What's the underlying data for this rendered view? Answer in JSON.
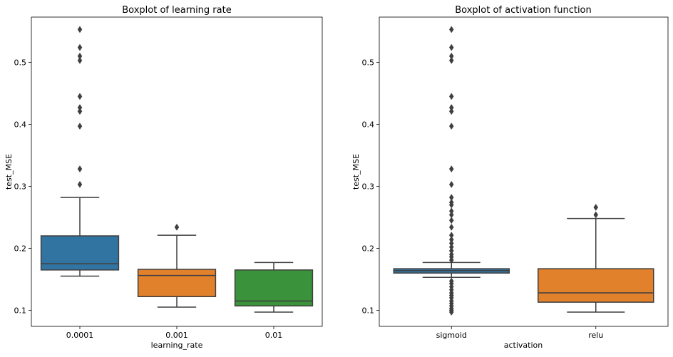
{
  "chart_data": [
    {
      "type": "box",
      "title": "Boxplot of learning rate",
      "xlabel": "learning_rate",
      "ylabel": "test_MSE",
      "ylim": [
        0.074,
        0.573
      ],
      "yticks": [
        0.1,
        0.2,
        0.3,
        0.4,
        0.5
      ],
      "ytick_labels": [
        "0.1",
        "0.2",
        "0.3",
        "0.4",
        "0.5"
      ],
      "grid": false,
      "boxes": [
        {
          "category": "0.0001",
          "color": "#3274a1",
          "whisker_low": 0.155,
          "q1": 0.165,
          "median": 0.175,
          "q3": 0.22,
          "whisker_high": 0.282,
          "outliers": [
            0.303,
            0.328,
            0.397,
            0.421,
            0.427,
            0.445,
            0.503,
            0.51,
            0.524,
            0.553
          ]
        },
        {
          "category": "0.001",
          "color": "#e1812c",
          "whisker_low": 0.105,
          "q1": 0.122,
          "median": 0.156,
          "q3": 0.166,
          "whisker_high": 0.221,
          "outliers": [
            0.234
          ]
        },
        {
          "category": "0.01",
          "color": "#3a923a",
          "whisker_low": 0.097,
          "q1": 0.107,
          "median": 0.115,
          "q3": 0.165,
          "whisker_high": 0.177,
          "outliers": []
        }
      ]
    },
    {
      "type": "box",
      "title": "Boxplot of activation function",
      "xlabel": "activation",
      "ylabel": "test_MSE",
      "ylim": [
        0.074,
        0.573
      ],
      "yticks": [
        0.1,
        0.2,
        0.3,
        0.4,
        0.5
      ],
      "ytick_labels": [
        "0.1",
        "0.2",
        "0.3",
        "0.4",
        "0.5"
      ],
      "grid": false,
      "boxes": [
        {
          "category": "sigmoid",
          "color": "#3274a1",
          "whisker_low": 0.153,
          "q1": 0.16,
          "median": 0.164,
          "q3": 0.167,
          "whisker_high": 0.177,
          "outliers": [
            0.097,
            0.1,
            0.103,
            0.107,
            0.111,
            0.115,
            0.12,
            0.124,
            0.128,
            0.133,
            0.138,
            0.143,
            0.147,
            0.181,
            0.186,
            0.19,
            0.196,
            0.202,
            0.208,
            0.214,
            0.221,
            0.234,
            0.245,
            0.254,
            0.26,
            0.27,
            0.274,
            0.282,
            0.303,
            0.328,
            0.397,
            0.421,
            0.427,
            0.445,
            0.503,
            0.51,
            0.524,
            0.553
          ]
        },
        {
          "category": "relu",
          "color": "#e1812c",
          "whisker_low": 0.097,
          "q1": 0.113,
          "median": 0.128,
          "q3": 0.167,
          "whisker_high": 0.248,
          "outliers": [
            0.254,
            0.266
          ]
        }
      ]
    }
  ]
}
